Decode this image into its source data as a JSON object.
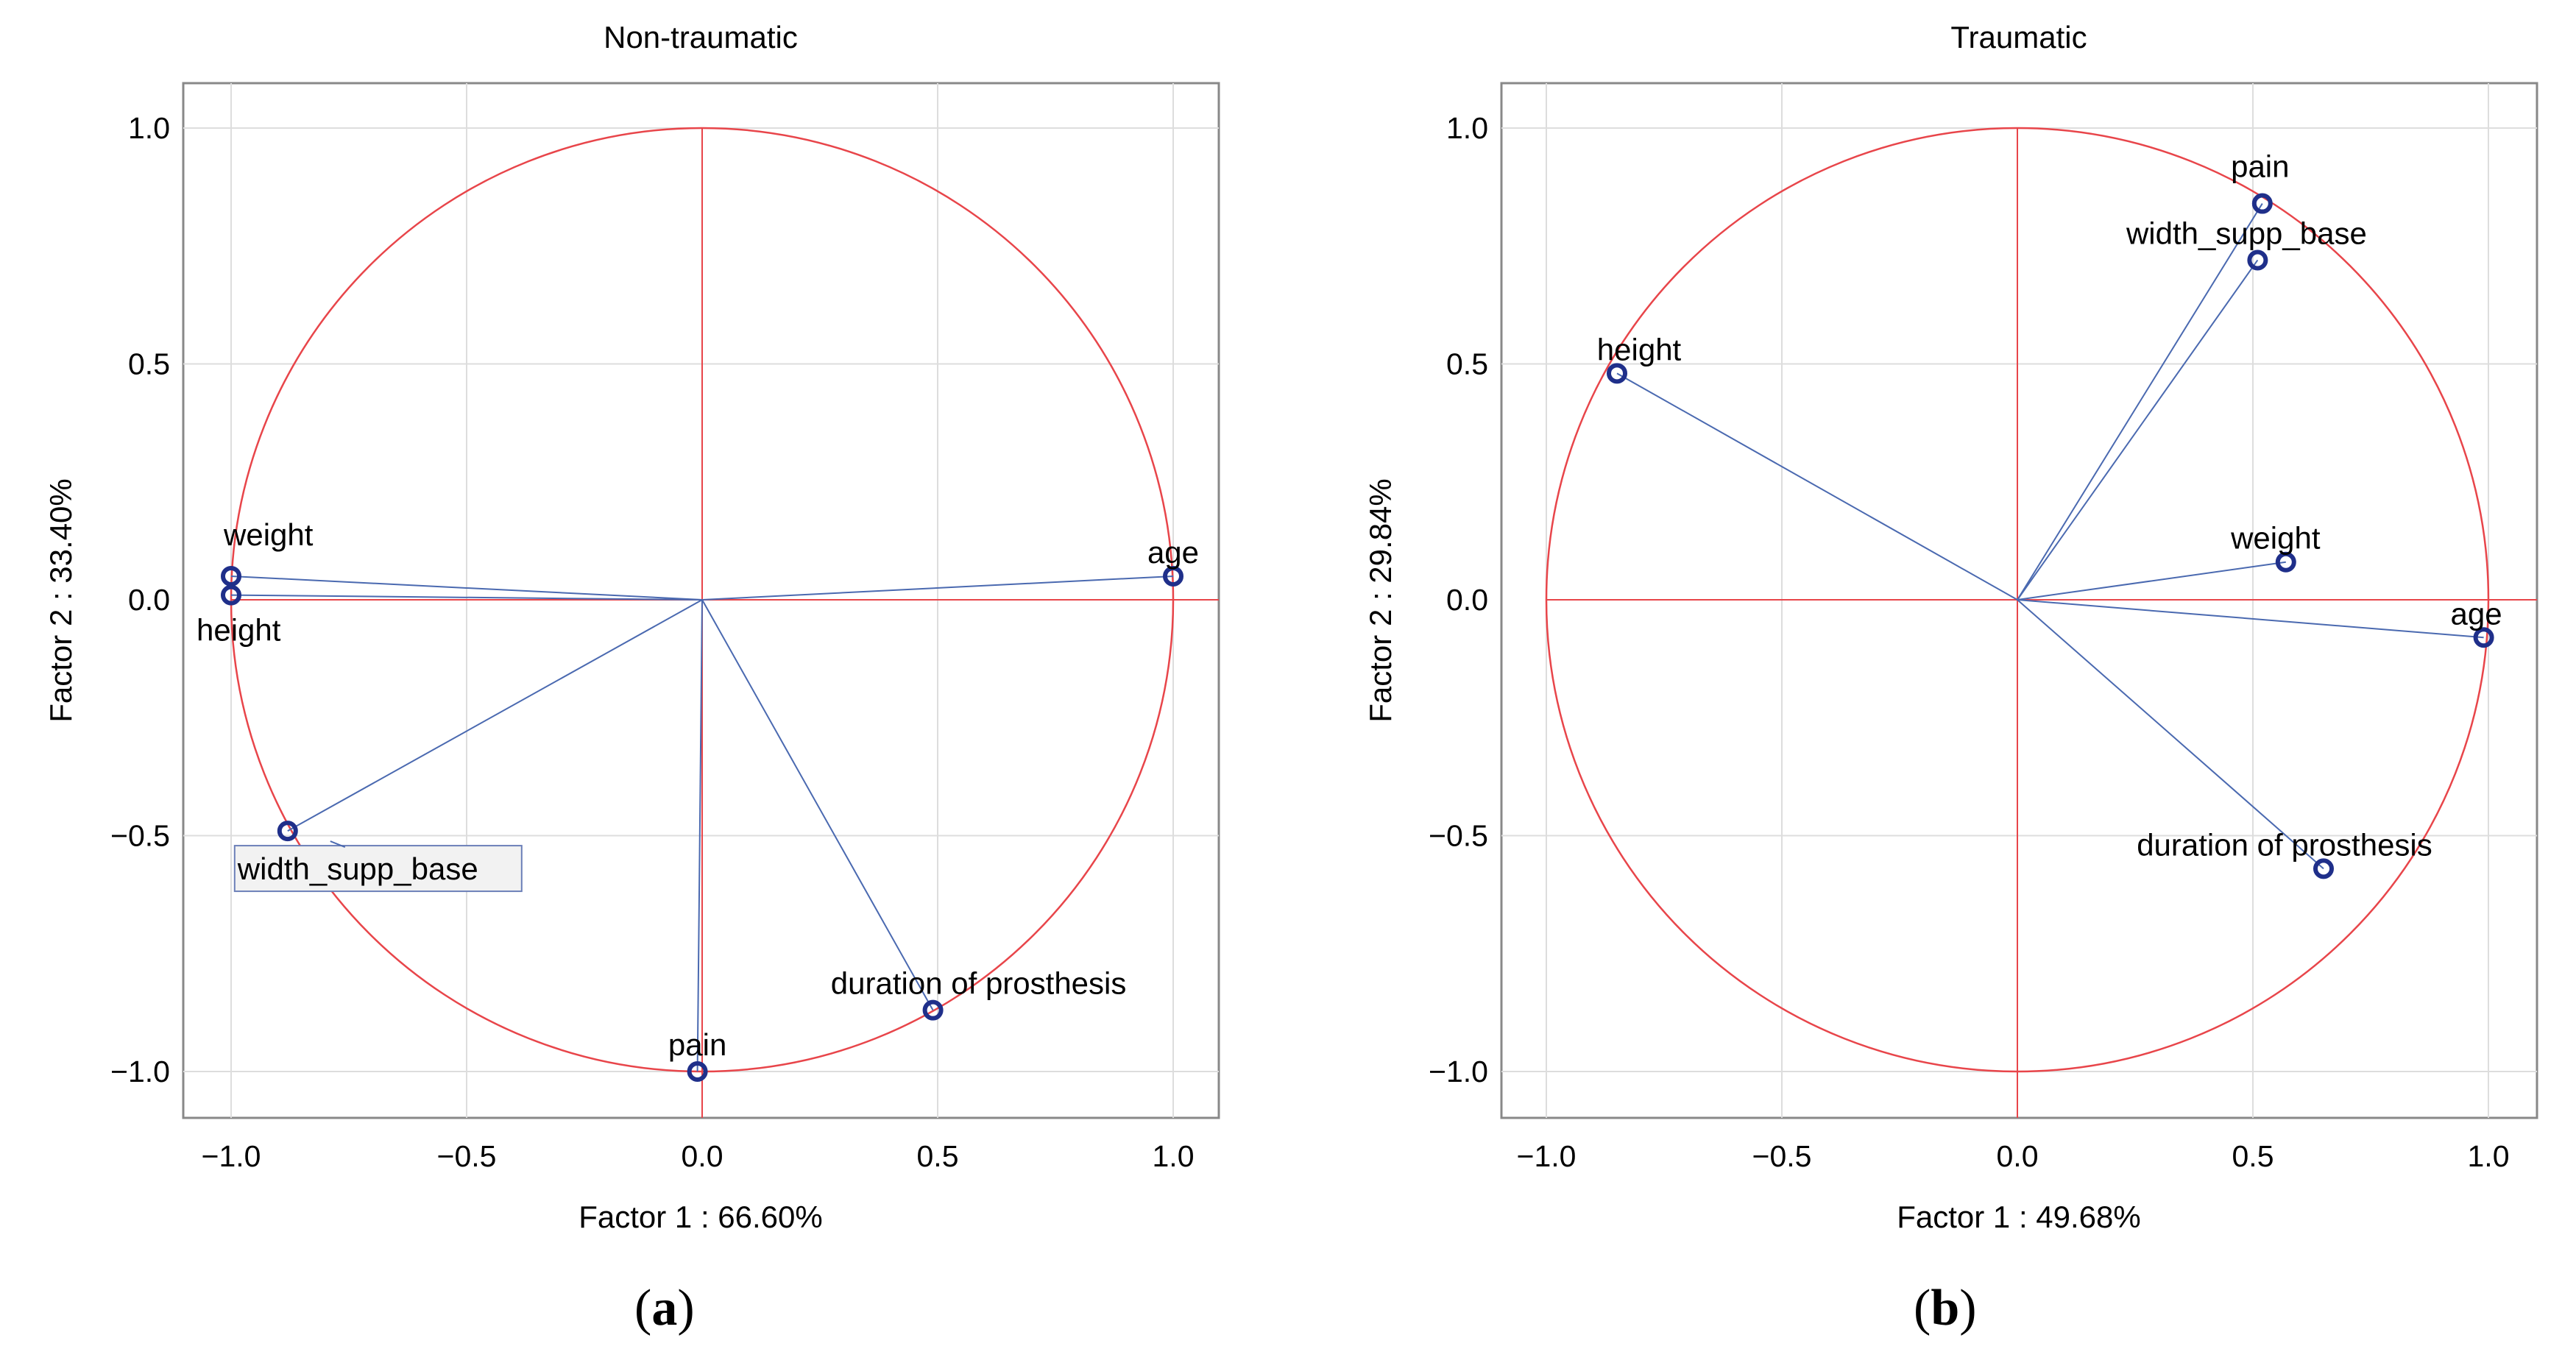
{
  "colors": {
    "circle": "#e8454a",
    "vector": "#4a69b0",
    "marker": "#1f2f8a",
    "grid": "#dddddd",
    "frame": "#888888"
  },
  "chart_data": [
    {
      "type": "scatter",
      "title": "Non-traumatic",
      "xlabel": "Factor 1 : 66.60%",
      "ylabel": "Factor 2 : 33.40%",
      "subfigure": "(a)",
      "subfigure_letter": "a",
      "xlim": [
        -1.1,
        1.1
      ],
      "ylim": [
        -1.1,
        1.1
      ],
      "xticks": [
        -1.0,
        -0.5,
        0.0,
        0.5,
        1.0
      ],
      "yticks": [
        -1.0,
        -0.5,
        0.0,
        0.5,
        1.0
      ],
      "xtick_labels": [
        "−1.0",
        "−0.5",
        "0.0",
        "0.5",
        "1.0"
      ],
      "ytick_labels": [
        "−1.0",
        "−0.5",
        "0.0",
        "0.5",
        "1.0"
      ],
      "unit_circle": true,
      "points": [
        {
          "name": "weight",
          "x": -1.0,
          "y": 0.05,
          "label_pos": "above"
        },
        {
          "name": "height",
          "x": -1.0,
          "y": 0.01,
          "label_pos": "below"
        },
        {
          "name": "age",
          "x": 1.0,
          "y": 0.05,
          "label_pos": "above"
        },
        {
          "name": "width_supp_base",
          "x": -0.88,
          "y": -0.49,
          "label_pos": "boxed"
        },
        {
          "name": "pain",
          "x": -0.01,
          "y": -1.0,
          "label_pos": "above"
        },
        {
          "name": "duration of prosthesis",
          "x": 0.49,
          "y": -0.87,
          "label_pos": "above"
        }
      ]
    },
    {
      "type": "scatter",
      "title": "Traumatic",
      "xlabel": "Factor 1 : 49.68%",
      "ylabel": "Factor 2 : 29.84%",
      "subfigure": "(b)",
      "subfigure_letter": "b",
      "xlim": [
        -1.1,
        1.1
      ],
      "ylim": [
        -1.1,
        1.1
      ],
      "xticks": [
        -1.0,
        -0.5,
        0.0,
        0.5,
        1.0
      ],
      "yticks": [
        -1.0,
        -0.5,
        0.0,
        0.5,
        1.0
      ],
      "xtick_labels": [
        "−1.0",
        "−0.5",
        "0.0",
        "0.5",
        "1.0"
      ],
      "ytick_labels": [
        "−1.0",
        "−0.5",
        "0.0",
        "0.5",
        "1.0"
      ],
      "unit_circle": true,
      "points": [
        {
          "name": "pain",
          "x": 0.52,
          "y": 0.84,
          "label_pos": "above"
        },
        {
          "name": "width_supp_base",
          "x": 0.51,
          "y": 0.72,
          "label_pos": "above"
        },
        {
          "name": "height",
          "x": -0.85,
          "y": 0.48,
          "label_pos": "above"
        },
        {
          "name": "weight",
          "x": 0.57,
          "y": 0.08,
          "label_pos": "above"
        },
        {
          "name": "age",
          "x": 0.99,
          "y": -0.08,
          "label_pos": "above"
        },
        {
          "name": "duration of prosthesis",
          "x": 0.65,
          "y": -0.57,
          "label_pos": "above"
        }
      ]
    }
  ]
}
